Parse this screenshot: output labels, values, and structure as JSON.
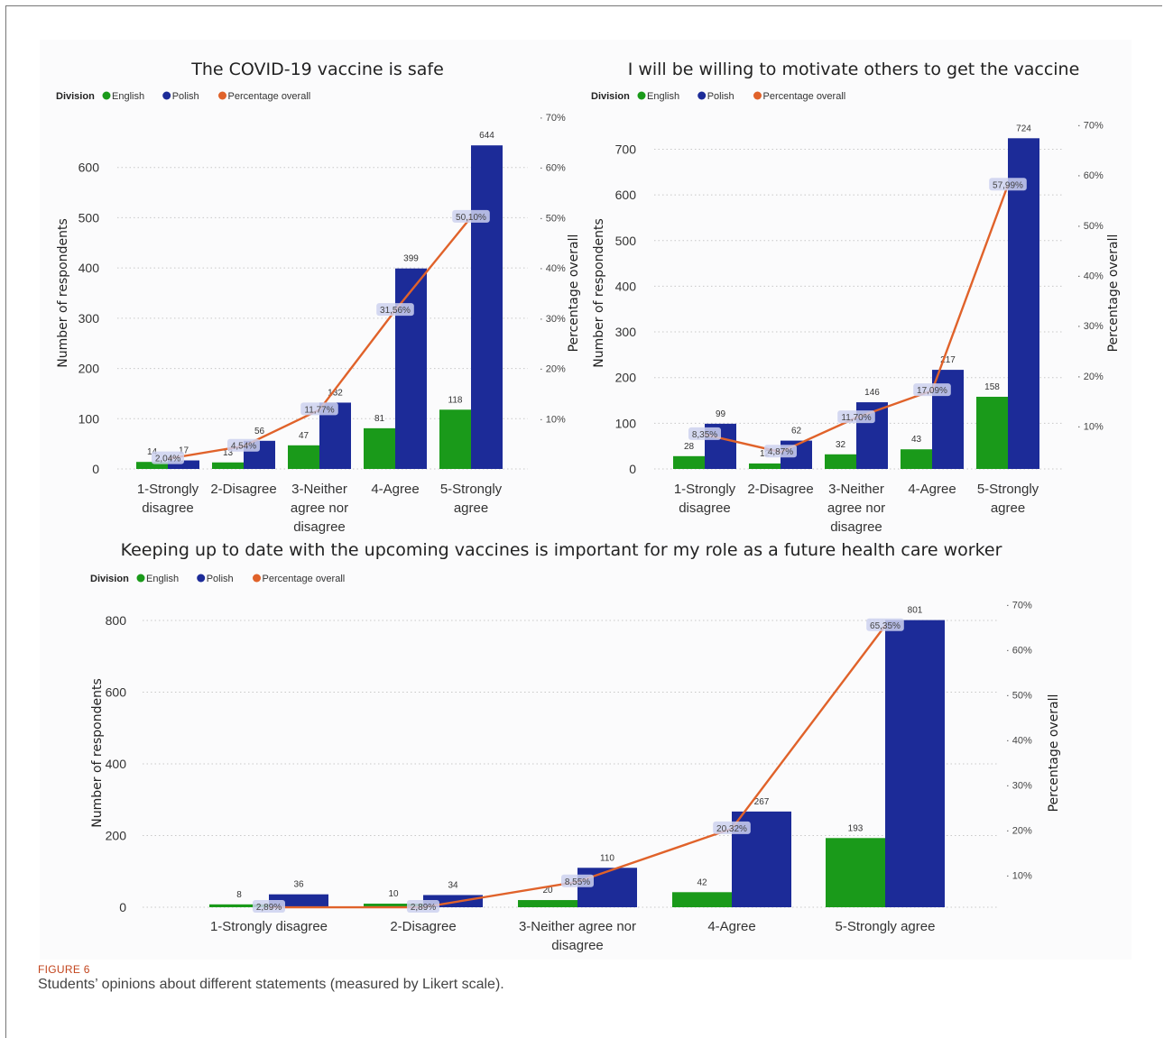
{
  "figure": {
    "label": "FIGURE 6",
    "caption": "Students’ opinions about different statements (measured by Likert scale)."
  },
  "colors": {
    "english": "#1a9a1a",
    "polish": "#1c2b98",
    "percentage": "#e0622a"
  },
  "legend": {
    "title": "Division",
    "items": [
      "English",
      "Polish",
      "Percentage overall"
    ]
  },
  "chart_data": [
    {
      "type": "bar",
      "title": "The COVID-19 vaccine is safe",
      "xlabel": "",
      "ylabel": "Number of respondents",
      "y2label": "Percentage overall",
      "categories": [
        "1-Strongly disagree",
        "2-Disagree",
        "3-Neither agree nor disagree",
        "4-Agree",
        "5-Strongly agree"
      ],
      "series": [
        {
          "name": "English",
          "values": [
            14,
            13,
            47,
            81,
            118
          ]
        },
        {
          "name": "Polish",
          "values": [
            17,
            56,
            132,
            399,
            644
          ]
        },
        {
          "name": "Percentage overall",
          "type": "line",
          "axis": "right",
          "values": [
            2.04,
            4.54,
            11.77,
            31.56,
            50.1
          ],
          "labels": [
            "2,04%",
            "4,54%",
            "11,77%",
            "31,56%",
            "50,10%"
          ]
        }
      ],
      "yticks": [
        0,
        100,
        200,
        300,
        400,
        500,
        600
      ],
      "ylim": [
        0,
        700
      ],
      "y2ticks": [
        "10%",
        "20%",
        "30%",
        "40%",
        "50%",
        "60%",
        "70%"
      ],
      "y2lim": [
        0,
        70
      ],
      "grid": true,
      "legend_position": "top-left"
    },
    {
      "type": "bar",
      "title": "I will be willing to motivate others to get the vaccine",
      "xlabel": "",
      "ylabel": "Number of respondents",
      "y2label": "Percentage overall",
      "categories": [
        "1-Strongly disagree",
        "2-Disagree",
        "3-Neither agree nor disagree",
        "4-Agree",
        "5-Strongly agree"
      ],
      "series": [
        {
          "name": "English",
          "values": [
            28,
            12,
            32,
            43,
            158
          ]
        },
        {
          "name": "Polish",
          "values": [
            99,
            62,
            146,
            217,
            724
          ]
        },
        {
          "name": "Percentage overall",
          "type": "line",
          "axis": "right",
          "values": [
            8.35,
            4.87,
            11.7,
            17.09,
            57.99
          ],
          "labels": [
            "8,35%",
            "4,87%",
            "11,70%",
            "17,09%",
            "57,99%"
          ]
        }
      ],
      "yticks": [
        0,
        100,
        200,
        300,
        400,
        500,
        600,
        700
      ],
      "ylim": [
        0,
        770
      ],
      "y2ticks": [
        "10%",
        "20%",
        "30%",
        "40%",
        "50%",
        "60%",
        "70%"
      ],
      "y2lim": [
        1.5,
        71.5
      ],
      "grid": true,
      "legend_position": "top-left"
    },
    {
      "type": "bar",
      "title": "Keeping up to date with the upcoming vaccines is important for my role as a future health care worker",
      "xlabel": "",
      "ylabel": "Number of respondents",
      "y2label": "Percentage overall",
      "categories": [
        "1-Strongly disagree",
        "2-Disagree",
        "3-Neither agree nor disagree",
        "4-Agree",
        "5-Strongly agree"
      ],
      "series": [
        {
          "name": "English",
          "values": [
            8,
            10,
            20,
            42,
            193
          ]
        },
        {
          "name": "Polish",
          "values": [
            36,
            34,
            110,
            267,
            801
          ]
        },
        {
          "name": "Percentage overall",
          "type": "line",
          "axis": "right",
          "values": [
            2.89,
            2.89,
            8.55,
            20.32,
            65.35
          ],
          "labels": [
            "2,89%",
            "2,89%",
            "8,55%",
            "20,32%",
            "65,35%"
          ]
        }
      ],
      "yticks": [
        0,
        200,
        400,
        600,
        800
      ],
      "ylim": [
        0,
        800
      ],
      "y2ticks": [
        "10%",
        "20%",
        "30%",
        "40%",
        "50%",
        "60%",
        "70%"
      ],
      "y2lim": [
        2.9,
        66.5
      ],
      "grid": true,
      "legend_position": "top-left"
    }
  ]
}
